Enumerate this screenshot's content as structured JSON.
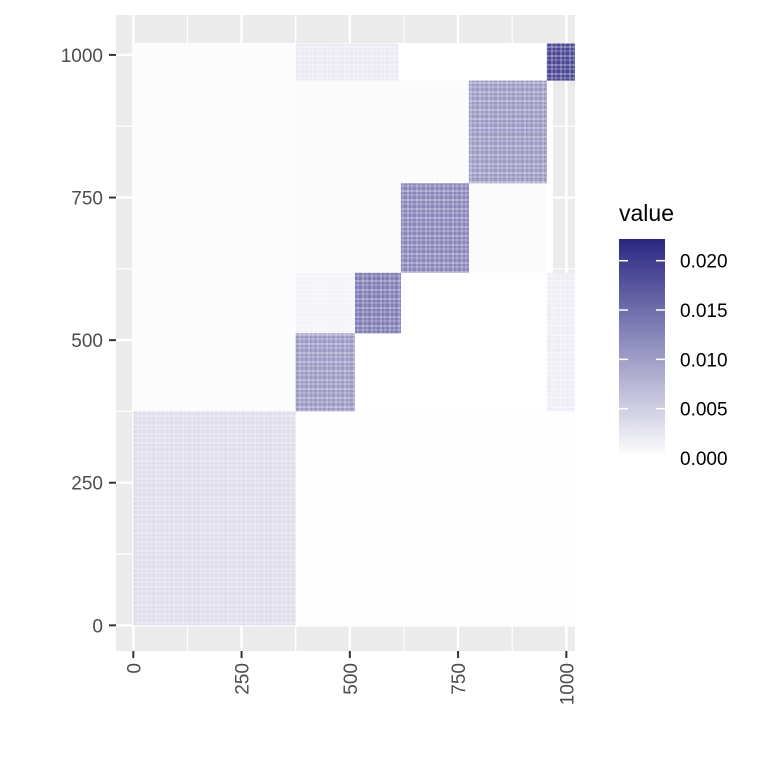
{
  "chart_data": {
    "type": "heatmap",
    "title": "",
    "xlabel": "",
    "ylabel": "",
    "xlim": [
      -40,
      1020
    ],
    "ylim": [
      -45,
      1070
    ],
    "x_ticks": [
      0,
      250,
      500,
      750,
      1000
    ],
    "y_ticks": [
      0,
      250,
      500,
      750,
      1000
    ],
    "x_tick_labels": [
      "0",
      "250",
      "500",
      "750",
      "1000"
    ],
    "y_tick_labels": [
      "0",
      "250",
      "500",
      "750",
      "1000"
    ],
    "grid": true,
    "legend": {
      "title": "value",
      "position": "right",
      "breaks": [
        0.0,
        0.005,
        0.01,
        0.015,
        0.02
      ],
      "labels": [
        "0.000",
        "0.005",
        "0.010",
        "0.015",
        "0.020"
      ],
      "range": [
        0,
        0.0222
      ],
      "low_color": "#ffffff",
      "high_color": "#2b2782"
    },
    "blocks": [
      {
        "x": [
          0,
          375
        ],
        "y": [
          0,
          375
        ],
        "value": 0.0035
      },
      {
        "x": [
          375,
          512
        ],
        "y": [
          375,
          512
        ],
        "value": 0.0105
      },
      {
        "x": [
          512,
          618
        ],
        "y": [
          512,
          618
        ],
        "value": 0.0135
      },
      {
        "x": [
          618,
          775
        ],
        "y": [
          618,
          775
        ],
        "value": 0.0125
      },
      {
        "x": [
          775,
          955
        ],
        "y": [
          775,
          955
        ],
        "value": 0.0105
      },
      {
        "x": [
          955,
          1020
        ],
        "y": [
          955,
          1020
        ],
        "value": 0.019
      }
    ],
    "off_diagonal": [
      {
        "x": [
          375,
          612
        ],
        "y": [
          955,
          1020
        ],
        "value": 0.0022
      },
      {
        "x": [
          375,
          512
        ],
        "y": [
          512,
          618
        ],
        "value": 0.0012
      },
      {
        "x": [
          955,
          1020
        ],
        "y": [
          375,
          618
        ],
        "value": 0.0018
      },
      {
        "x": [
          375,
          955
        ],
        "y": [
          618,
          955
        ],
        "value": 0.0005
      },
      {
        "x": [
          0,
          375
        ],
        "y": [
          375,
          1020
        ],
        "value": 0.0003
      },
      {
        "x": [
          375,
          1020
        ],
        "y": [
          0,
          375
        ],
        "value": 0.0002
      }
    ]
  }
}
